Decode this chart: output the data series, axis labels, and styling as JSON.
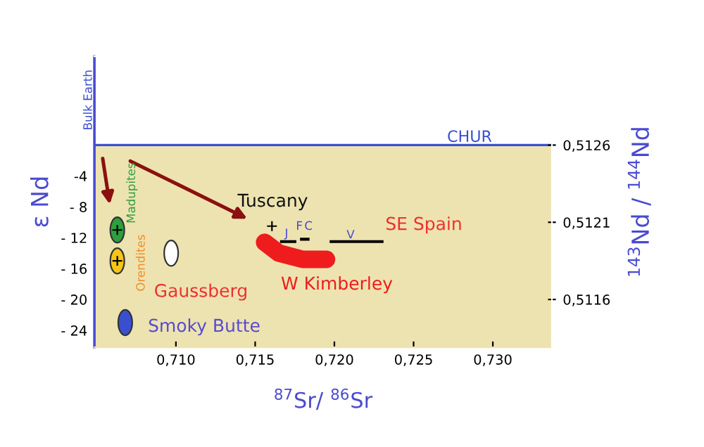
{
  "chart_data": {
    "type": "scatter",
    "xlabel": "$^{87}$Sr/ $^{86}$Sr",
    "ylabel": "ε Nd",
    "y2label": "$^{143}$Nd / $^{144}$Nd",
    "xlim": [
      0.70485,
      0.73373
    ],
    "ylim": [
      -26.2,
      11.5
    ],
    "y2lim": [
      0.51129,
      0.513175
    ],
    "xticks": [
      {
        "value": 0.71,
        "label": "0,710"
      },
      {
        "value": 0.715,
        "label": "0,715"
      },
      {
        "value": 0.72,
        "label": "0,720"
      },
      {
        "value": 0.725,
        "label": "0,725"
      },
      {
        "value": 0.73,
        "label": "0,730"
      }
    ],
    "yticks": [
      {
        "value": -4,
        "label": "-4"
      },
      {
        "value": -8,
        "label": "- 8"
      },
      {
        "value": -12,
        "label": "- 12"
      },
      {
        "value": -16,
        "label": "- 16"
      },
      {
        "value": -20,
        "label": "- 20"
      },
      {
        "value": -24,
        "label": "- 24"
      }
    ],
    "y2ticks": [
      {
        "value": 0.5126,
        "label": "0,5126"
      },
      {
        "value": 0.5121,
        "label": "0,5121"
      },
      {
        "value": 0.5116,
        "label": "0,5116"
      }
    ],
    "grid": false,
    "series": [
      {
        "marker": "circle",
        "color": "#2e9e3e",
        "x": [
          0.7063
        ],
        "values": [
          -11
        ]
      },
      {
        "marker": "circle",
        "color": "#f5c518",
        "x": [
          0.7063
        ],
        "values": [
          -15
        ]
      },
      {
        "marker": "circle",
        "color": "#ffffff",
        "x": [
          0.7097
        ],
        "values": [
          -14
        ]
      },
      {
        "marker": "circle",
        "color": "#3a4fd0",
        "x": [
          0.7068
        ],
        "values": [
          -23
        ]
      },
      {
        "marker": "cross",
        "color": "#000000",
        "x": [
          0.7063,
          0.7063,
          0.71606
        ],
        "values": [
          -11,
          -15,
          -10.5
        ]
      },
      {
        "type": "line",
        "marker": "none",
        "color": "#ee1c1c",
        "x": [
          0.7156,
          0.7165,
          0.718,
          0.7195
        ],
        "values": [
          -12.6,
          -14.0,
          -14.8,
          -14.8
        ]
      },
      {
        "type": "line",
        "marker": "none",
        "color": "#000000",
        "x": [
          0.71657,
          0.7176
        ],
        "values": [
          -12.5,
          -12.5
        ]
      },
      {
        "type": "line",
        "marker": "none",
        "color": "#000000",
        "x": [
          0.71783,
          0.71843
        ],
        "values": [
          -12.2,
          -12.2
        ]
      },
      {
        "type": "line",
        "marker": "none",
        "color": "#000000",
        "x": [
          0.7197,
          0.7231
        ],
        "values": [
          -12.5,
          -12.5
        ]
      }
    ],
    "ref_lines": [
      {
        "axis": "y",
        "value": 0,
        "label": "CHUR",
        "color": "#3a4fd0"
      },
      {
        "axis": "x",
        "value": 0.70485,
        "label": "Bulk Earth",
        "color": "#3a4fd0"
      }
    ],
    "bands": [
      {
        "axis": "y",
        "from": -26.2,
        "to": 0,
        "color": "#ede3b0"
      }
    ],
    "annotations": [
      "Madupites",
      "Orendites",
      "Gaussberg",
      "Smoky Butte",
      "Tuscany",
      "W Kimberley",
      "SE Spain",
      "J",
      "F",
      "C",
      "V"
    ]
  }
}
